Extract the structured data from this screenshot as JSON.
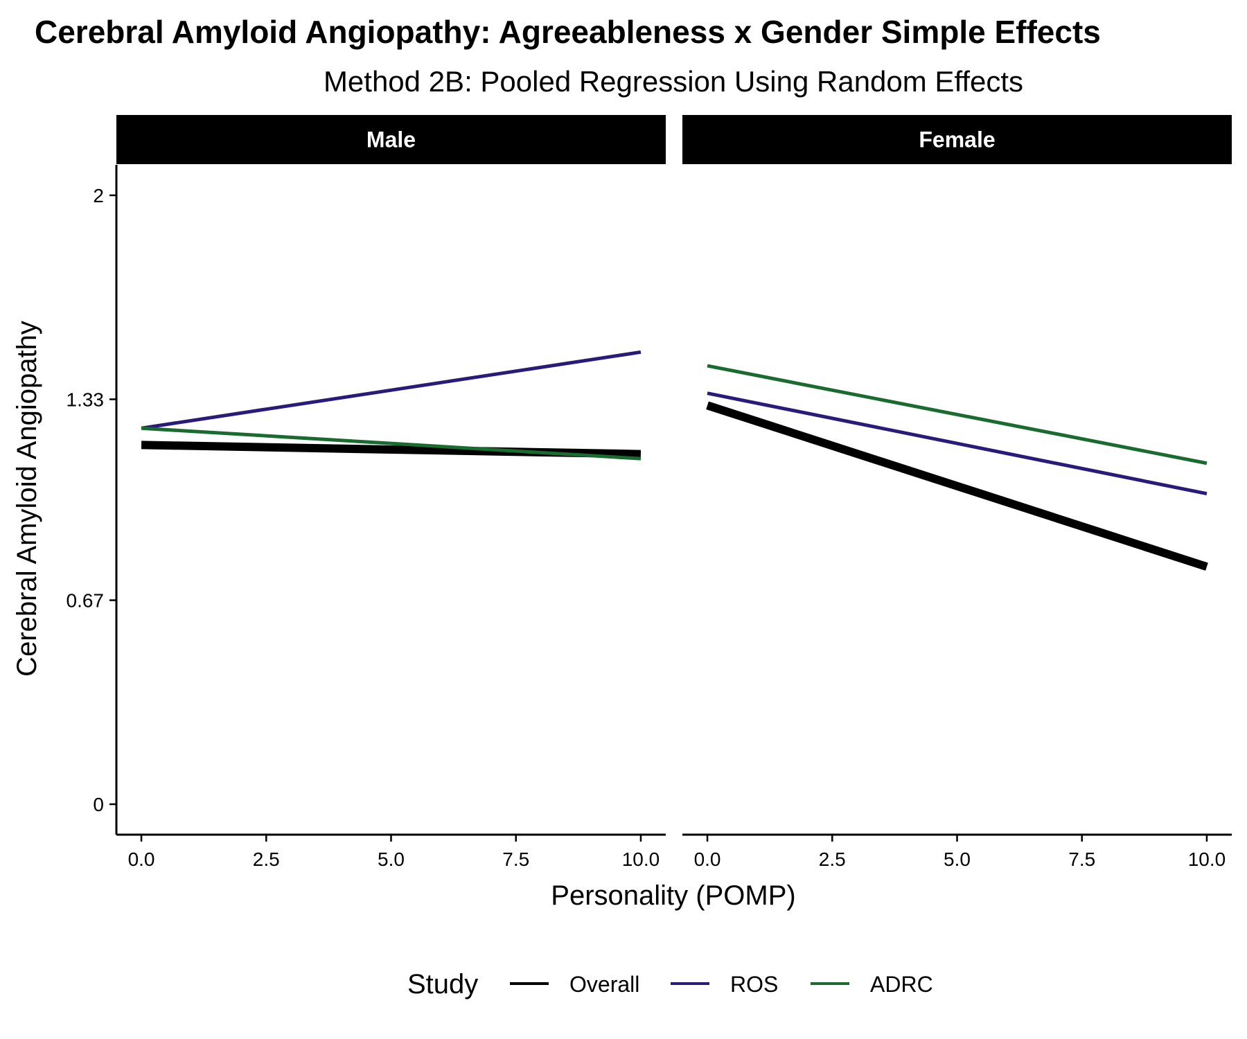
{
  "chart_data": {
    "type": "line",
    "title": "Cerebral Amyloid Angiopathy: Agreeableness x Gender Simple Effects",
    "subtitle": "Method 2B: Pooled Regression Using Random Effects",
    "xlabel": "Personality (POMP)",
    "ylabel": "Cerebral Amyloid Angiopathy",
    "xlim": [
      -0.5,
      10.5
    ],
    "ylim": [
      -0.1,
      2.1
    ],
    "x_ticks": [
      0,
      2.5,
      5,
      7.5,
      10
    ],
    "x_tick_labels": [
      "0.0",
      "2.5",
      "5.0",
      "7.5",
      "10.0"
    ],
    "y_ticks": [
      0,
      0.67,
      1.33,
      2
    ],
    "y_tick_labels": [
      "0",
      "0.67",
      "1.33",
      "2"
    ],
    "grid": false,
    "legend": {
      "title": "Study",
      "position": "bottom",
      "entries": [
        {
          "label": "Overall",
          "color": "#000000"
        },
        {
          "label": "ROS",
          "color": "#2a1a7a"
        },
        {
          "label": "ADRC",
          "color": "#1a6b30"
        }
      ]
    },
    "panels": [
      {
        "name": "Male",
        "series": [
          {
            "name": "Overall",
            "color": "#000000",
            "x": [
              0,
              10
            ],
            "y": [
              1.18,
              1.15
            ]
          },
          {
            "name": "ROS",
            "color": "#2a1a7a",
            "x": [
              0,
              10
            ],
            "y": [
              1.235,
              1.485
            ]
          },
          {
            "name": "ADRC",
            "color": "#1a6b30",
            "x": [
              0,
              10
            ],
            "y": [
              1.235,
              1.135
            ]
          }
        ]
      },
      {
        "name": "Female",
        "series": [
          {
            "name": "Overall",
            "color": "#000000",
            "x": [
              0,
              10
            ],
            "y": [
              1.31,
              0.78
            ]
          },
          {
            "name": "ROS",
            "color": "#2a1a7a",
            "x": [
              0,
              10
            ],
            "y": [
              1.35,
              1.02
            ]
          },
          {
            "name": "ADRC",
            "color": "#1a6b30",
            "x": [
              0,
              10
            ],
            "y": [
              1.44,
              1.12
            ]
          }
        ]
      }
    ]
  }
}
